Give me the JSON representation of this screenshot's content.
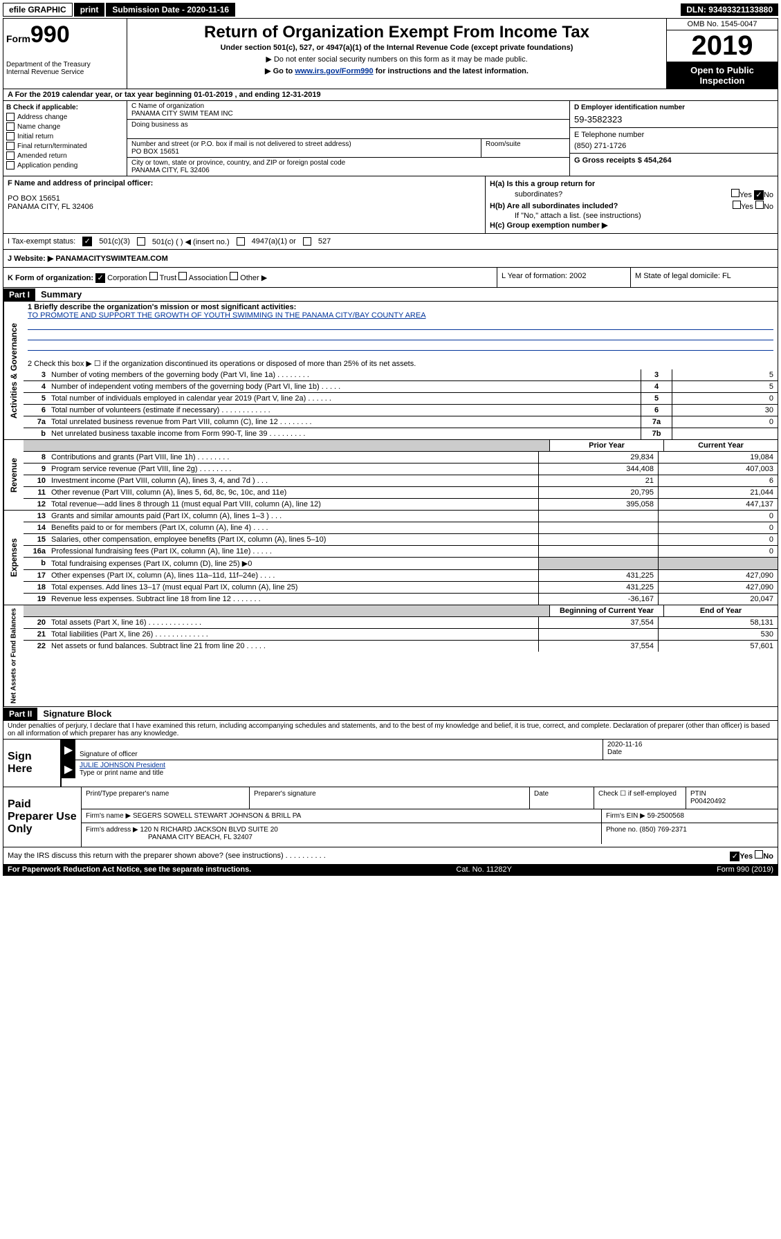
{
  "topbar": {
    "efile": "efile GRAPHIC",
    "print": "print",
    "sub_label": "Submission Date - 2020-11-16",
    "dln": "DLN: 93493321133880"
  },
  "header": {
    "form_prefix": "Form",
    "form_number": "990",
    "dept1": "Department of the Treasury",
    "dept2": "Internal Revenue Service",
    "title": "Return of Organization Exempt From Income Tax",
    "subtitle": "Under section 501(c), 527, or 4947(a)(1) of the Internal Revenue Code (except private foundations)",
    "sub2": "▶ Do not enter social security numbers on this form as it may be made public.",
    "sub3a": "▶ Go to ",
    "sub3link": "www.irs.gov/Form990",
    "sub3b": " for instructions and the latest information.",
    "omb": "OMB No. 1545-0047",
    "year": "2019",
    "open1": "Open to Public",
    "open2": "Inspection"
  },
  "row_a": "A   For the 2019 calendar year, or tax year beginning 01-01-2019    , and ending 12-31-2019",
  "b": {
    "header": "B Check if applicable:",
    "opts": [
      "Address change",
      "Name change",
      "Initial return",
      "Final return/terminated",
      "Amended return",
      "Application pending"
    ]
  },
  "c": {
    "name_label": "C Name of organization",
    "name": "PANAMA CITY SWIM TEAM INC",
    "dba_label": "Doing business as",
    "addr_label": "Number and street (or P.O. box if mail is not delivered to street address)",
    "room_label": "Room/suite",
    "addr": "PO BOX 15651",
    "city_label": "City or town, state or province, country, and ZIP or foreign postal code",
    "city": "PANAMA CITY, FL  32406"
  },
  "d": {
    "label": "D Employer identification number",
    "ein": "59-3582323",
    "e_label": "E Telephone number",
    "e_phone": "(850) 271-1726",
    "g_label": "G Gross receipts $ 454,264"
  },
  "f": {
    "label": "F Name and address of principal officer:",
    "addr1": "PO BOX 15651",
    "addr2": "PANAMA CITY, FL  32406"
  },
  "h": {
    "a_label": "H(a)  Is this a group return for",
    "a_label2": "subordinates?",
    "b_label": "H(b)  Are all subordinates included?",
    "b_note": "If \"No,\" attach a list. (see instructions)",
    "c_label": "H(c)  Group exemption number ▶",
    "yes": "Yes",
    "no": "No"
  },
  "i": {
    "label": "I    Tax-exempt status:",
    "opt1": "501(c)(3)",
    "opt2": "501(c) (  ) ◀ (insert no.)",
    "opt3": "4947(a)(1) or",
    "opt4": "527"
  },
  "j": {
    "label": "J    Website: ▶",
    "val": "  PANAMACITYSWIMTEAM.COM"
  },
  "k": {
    "label": "K Form of organization:",
    "corp": "Corporation",
    "trust": "Trust",
    "assoc": "Association",
    "other": "Other ▶",
    "l_label": "L Year of formation: 2002",
    "m_label": "M State of legal domicile: FL"
  },
  "part1": {
    "header": "Part I",
    "title": "Summary",
    "side1": "Activities & Governance",
    "side2": "Revenue",
    "side3": "Expenses",
    "side4": "Net Assets or Fund Balances",
    "line1_label": "1   Briefly describe the organization's mission or most significant activities:",
    "line1_val": "TO PROMOTE AND SUPPORT THE GROWTH OF YOUTH SWIMMING IN THE PANAMA CITY/BAY COUNTY AREA",
    "line2": "2   Check this box ▶ ☐  if the organization discontinued its operations or disposed of more than 25% of its net assets.",
    "lines_gov": [
      {
        "n": "3",
        "t": "Number of voting members of the governing body (Part VI, line 1a)   .    .    .    .    .    .    .    .",
        "box": "3",
        "v": "5"
      },
      {
        "n": "4",
        "t": "Number of independent voting members of the governing body (Part VI, line 1b)   .    .    .    .    .",
        "box": "4",
        "v": "5"
      },
      {
        "n": "5",
        "t": "Total number of individuals employed in calendar year 2019 (Part V, line 2a)   .    .    .    .    .    .",
        "box": "5",
        "v": "0"
      },
      {
        "n": "6",
        "t": "Total number of volunteers (estimate if necessary)   .    .    .    .    .    .    .    .    .    .    .    .",
        "box": "6",
        "v": "30"
      },
      {
        "n": "7a",
        "t": "Total unrelated business revenue from Part VIII, column (C), line 12   .    .    .    .    .    .    .    .",
        "box": "7a",
        "v": "0"
      },
      {
        "n": "b",
        "t": "Net unrelated business taxable income from Form 990-T, line 39   .    .    .    .    .    .    .    .    .",
        "box": "7b",
        "v": ""
      }
    ],
    "prior_header": "Prior Year",
    "curr_header": "Current Year",
    "lines_rev": [
      {
        "n": "8",
        "t": "Contributions and grants (Part VIII, line 1h)   .    .    .    .    .    .    .    .",
        "p": "29,834",
        "c": "19,084"
      },
      {
        "n": "9",
        "t": "Program service revenue (Part VIII, line 2g)   .    .    .    .    .    .    .    .",
        "p": "344,408",
        "c": "407,003"
      },
      {
        "n": "10",
        "t": "Investment income (Part VIII, column (A), lines 3, 4, and 7d )   .    .    .",
        "p": "21",
        "c": "6"
      },
      {
        "n": "11",
        "t": "Other revenue (Part VIII, column (A), lines 5, 6d, 8c, 9c, 10c, and 11e)",
        "p": "20,795",
        "c": "21,044"
      },
      {
        "n": "12",
        "t": "Total revenue—add lines 8 through 11 (must equal Part VIII, column (A), line 12)",
        "p": "395,058",
        "c": "447,137"
      }
    ],
    "lines_exp": [
      {
        "n": "13",
        "t": "Grants and similar amounts paid (Part IX, column (A), lines 1–3 )   .    .    .",
        "p": "",
        "c": "0"
      },
      {
        "n": "14",
        "t": "Benefits paid to or for members (Part IX, column (A), line 4)   .    .    .    .",
        "p": "",
        "c": "0"
      },
      {
        "n": "15",
        "t": "Salaries, other compensation, employee benefits (Part IX, column (A), lines 5–10)",
        "p": "",
        "c": "0"
      },
      {
        "n": "16a",
        "t": "Professional fundraising fees (Part IX, column (A), line 11e)   .    .    .    .    .",
        "p": "",
        "c": "0"
      },
      {
        "n": "b",
        "t": "Total fundraising expenses (Part IX, column (D), line 25) ▶0",
        "p": "gray",
        "c": "gray"
      },
      {
        "n": "17",
        "t": "Other expenses (Part IX, column (A), lines 11a–11d, 11f–24e)   .    .    .    .",
        "p": "431,225",
        "c": "427,090"
      },
      {
        "n": "18",
        "t": "Total expenses. Add lines 13–17 (must equal Part IX, column (A), line 25)",
        "p": "431,225",
        "c": "427,090"
      },
      {
        "n": "19",
        "t": "Revenue less expenses. Subtract line 18 from line 12   .    .    .    .    .    .    .",
        "p": "-36,167",
        "c": "20,047"
      }
    ],
    "net_prior": "Beginning of Current Year",
    "net_curr": "End of Year",
    "lines_net": [
      {
        "n": "20",
        "t": "Total assets (Part X, line 16)   .    .    .    .    .    .    .    .    .    .    .    .    .",
        "p": "37,554",
        "c": "58,131"
      },
      {
        "n": "21",
        "t": "Total liabilities (Part X, line 26)   .    .    .    .    .    .    .    .    .    .    .    .    .",
        "p": "",
        "c": "530"
      },
      {
        "n": "22",
        "t": "Net assets or fund balances. Subtract line 21 from line 20   .    .    .    .    .",
        "p": "37,554",
        "c": "57,601"
      }
    ]
  },
  "part2": {
    "header": "Part II",
    "title": "Signature Block",
    "perjury": "Under penalties of perjury, I declare that I have examined this return, including accompanying schedules and statements, and to the best of my knowledge and belief, it is true, correct, and complete. Declaration of preparer (other than officer) is based on all information of which preparer has any knowledge.",
    "sign_here": "Sign Here",
    "sig_officer": "Signature of officer",
    "sig_date": "2020-11-16",
    "date_label": "Date",
    "name_title": "JULIE JOHNSON  President",
    "name_label": "Type or print name and title",
    "paid": "Paid Preparer Use Only",
    "print_label": "Print/Type preparer's name",
    "prep_sig_label": "Preparer's signature",
    "check_label": "Check ☐ if self-employed",
    "ptin_label": "PTIN",
    "ptin": "P00420492",
    "firm_name_label": "Firm's name    ▶",
    "firm_name": "SEGERS SOWELL STEWART JOHNSON & BRILL PA",
    "firm_ein_label": "Firm's EIN ▶ 59-2500568",
    "firm_addr_label": "Firm's address ▶",
    "firm_addr1": "120 N RICHARD JACKSON BLVD SUITE 20",
    "firm_addr2": "PANAMA CITY BEACH, FL  32407",
    "phone_label": "Phone no. (850) 769-2371",
    "discuss": "May the IRS discuss this return with the preparer shown above? (see instructions)   .    .    .    .    .    .    .    .    .    .",
    "yes": "Yes",
    "no": "No"
  },
  "footer": {
    "left": "For Paperwork Reduction Act Notice, see the separate instructions.",
    "mid": "Cat. No. 11282Y",
    "right": "Form 990 (2019)"
  }
}
